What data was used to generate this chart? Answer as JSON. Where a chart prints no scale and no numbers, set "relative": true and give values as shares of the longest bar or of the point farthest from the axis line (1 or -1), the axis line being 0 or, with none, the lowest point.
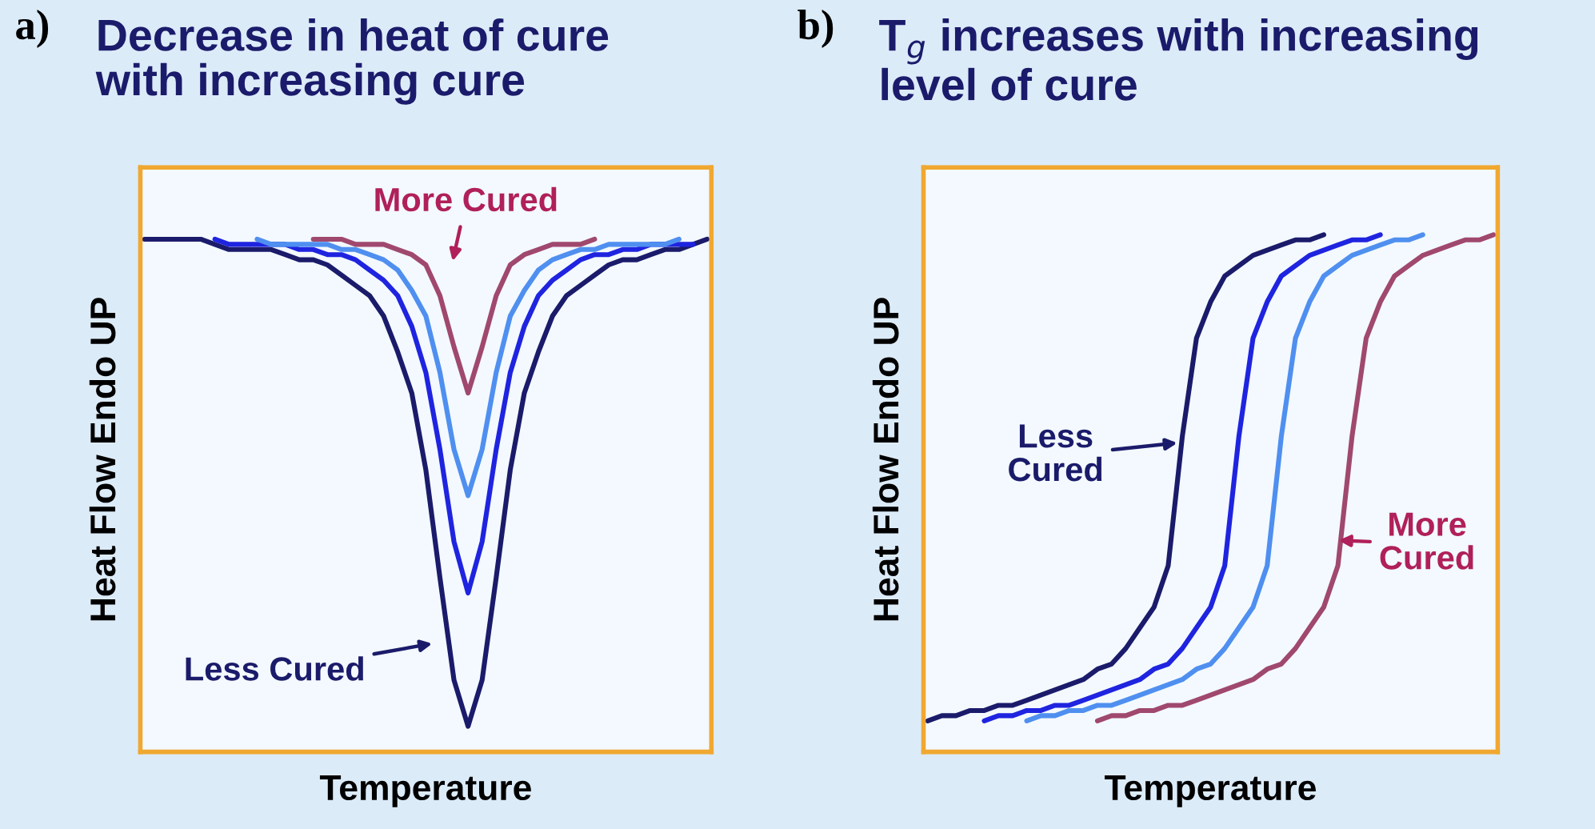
{
  "chart_data": [
    {
      "type": "line",
      "relative": true,
      "title": "Decrease in heat of cure\nwith increasing cure",
      "xlabel": "Temperature",
      "ylabel": "Heat Flow Endo UP",
      "tick_labels": false,
      "annotations": [
        "a)",
        "More Cured",
        "Less Cured"
      ],
      "categories": [
        null,
        null,
        null,
        null,
        null,
        null,
        null,
        null,
        null,
        null,
        null,
        null,
        null,
        null,
        null,
        null,
        null,
        null,
        null,
        null,
        null,
        null,
        null,
        null,
        null,
        null,
        null,
        null,
        null,
        null,
        null,
        null,
        null,
        null,
        null,
        null,
        null,
        null,
        null,
        null,
        null
      ],
      "series": [
        {
          "color": "#1b1b6b",
          "values": [
            1,
            1,
            1,
            1,
            1,
            0.99,
            0.98,
            0.98,
            0.98,
            0.98,
            0.97,
            0.96,
            0.96,
            0.95,
            0.93,
            0.91,
            0.89,
            0.85,
            0.78,
            0.7,
            0.55,
            0.34,
            0.14,
            0.05,
            0.14,
            0.34,
            0.55,
            0.7,
            0.78,
            0.85,
            0.89,
            0.91,
            0.93,
            0.95,
            0.96,
            0.96,
            0.97,
            0.98,
            0.98,
            0.99,
            1
          ]
        },
        {
          "color": "#1f24e0",
          "values": [
            null,
            null,
            null,
            null,
            null,
            1,
            0.99,
            0.99,
            0.99,
            0.99,
            0.99,
            0.98,
            0.98,
            0.97,
            0.97,
            0.96,
            0.94,
            0.92,
            0.89,
            0.83,
            0.74,
            0.59,
            0.41,
            0.31,
            0.41,
            0.59,
            0.74,
            0.83,
            0.89,
            0.92,
            0.94,
            0.96,
            0.97,
            0.97,
            0.98,
            0.98,
            0.99,
            0.99,
            0.99,
            0.99,
            null
          ]
        },
        {
          "color": "#4f8ff0",
          "values": [
            null,
            null,
            null,
            null,
            null,
            null,
            null,
            null,
            1,
            0.99,
            0.99,
            0.99,
            0.99,
            0.99,
            0.98,
            0.98,
            0.97,
            0.96,
            0.94,
            0.9,
            0.85,
            0.74,
            0.59,
            0.5,
            0.59,
            0.74,
            0.85,
            0.9,
            0.94,
            0.96,
            0.97,
            0.98,
            0.98,
            0.99,
            0.99,
            0.99,
            0.99,
            0.99,
            1,
            null,
            null
          ]
        },
        {
          "color": "#a0486e",
          "values": [
            null,
            null,
            null,
            null,
            null,
            null,
            null,
            null,
            null,
            null,
            null,
            null,
            1,
            1,
            1,
            0.99,
            0.99,
            0.99,
            0.98,
            0.97,
            0.95,
            0.89,
            0.79,
            0.7,
            0.79,
            0.89,
            0.95,
            0.97,
            0.98,
            0.99,
            0.99,
            0.99,
            1,
            null,
            null,
            null,
            null,
            null,
            null,
            null,
            null
          ]
        }
      ]
    },
    {
      "type": "line",
      "relative": true,
      "title": "T$_{g}$ increases with increasing\nlevel of cure",
      "xlabel": "Temperature",
      "ylabel": "Heat Flow Endo UP",
      "tick_labels": false,
      "annotations": [
        "b)",
        "Less\nCured",
        "More\nCured"
      ],
      "categories": [
        null,
        null,
        null,
        null,
        null,
        null,
        null,
        null,
        null,
        null,
        null,
        null,
        null,
        null,
        null,
        null,
        null,
        null,
        null,
        null,
        null,
        null,
        null,
        null,
        null,
        null,
        null,
        null,
        null,
        null,
        null,
        null,
        null,
        null,
        null,
        null,
        null,
        null,
        null,
        null,
        null
      ],
      "series": [
        {
          "color": "#1b1b6b",
          "values": [
            0.06,
            0.07,
            0.07,
            0.08,
            0.08,
            0.09,
            0.09,
            0.1,
            0.11,
            0.12,
            0.13,
            0.14,
            0.16,
            0.17,
            0.2,
            0.24,
            0.28,
            0.36,
            0.61,
            0.8,
            0.87,
            0.92,
            0.94,
            0.96,
            0.97,
            0.98,
            0.99,
            0.99,
            1,
            null,
            null,
            null,
            null,
            null,
            null,
            null,
            null,
            null,
            null,
            null,
            null
          ]
        },
        {
          "color": "#1f24e0",
          "values": [
            null,
            null,
            null,
            null,
            0.06,
            0.07,
            0.07,
            0.08,
            0.08,
            0.09,
            0.09,
            0.1,
            0.11,
            0.12,
            0.13,
            0.14,
            0.16,
            0.17,
            0.2,
            0.24,
            0.28,
            0.36,
            0.61,
            0.8,
            0.87,
            0.92,
            0.94,
            0.96,
            0.97,
            0.98,
            0.99,
            0.99,
            1,
            null,
            null,
            null,
            null,
            null,
            null,
            null,
            null
          ]
        },
        {
          "color": "#4f8ff0",
          "values": [
            null,
            null,
            null,
            null,
            null,
            null,
            null,
            0.06,
            0.07,
            0.07,
            0.08,
            0.08,
            0.09,
            0.09,
            0.1,
            0.11,
            0.12,
            0.13,
            0.14,
            0.16,
            0.17,
            0.2,
            0.24,
            0.28,
            0.36,
            0.61,
            0.8,
            0.87,
            0.92,
            0.94,
            0.96,
            0.97,
            0.98,
            0.99,
            0.99,
            1,
            null,
            null,
            null,
            null,
            null
          ]
        },
        {
          "color": "#a0486e",
          "values": [
            null,
            null,
            null,
            null,
            null,
            null,
            null,
            null,
            null,
            null,
            null,
            null,
            0.06,
            0.07,
            0.07,
            0.08,
            0.08,
            0.09,
            0.09,
            0.1,
            0.11,
            0.12,
            0.13,
            0.14,
            0.16,
            0.17,
            0.2,
            0.24,
            0.28,
            0.36,
            0.61,
            0.8,
            0.87,
            0.92,
            0.94,
            0.96,
            0.97,
            0.98,
            0.99,
            0.99,
            1
          ]
        }
      ]
    }
  ]
}
